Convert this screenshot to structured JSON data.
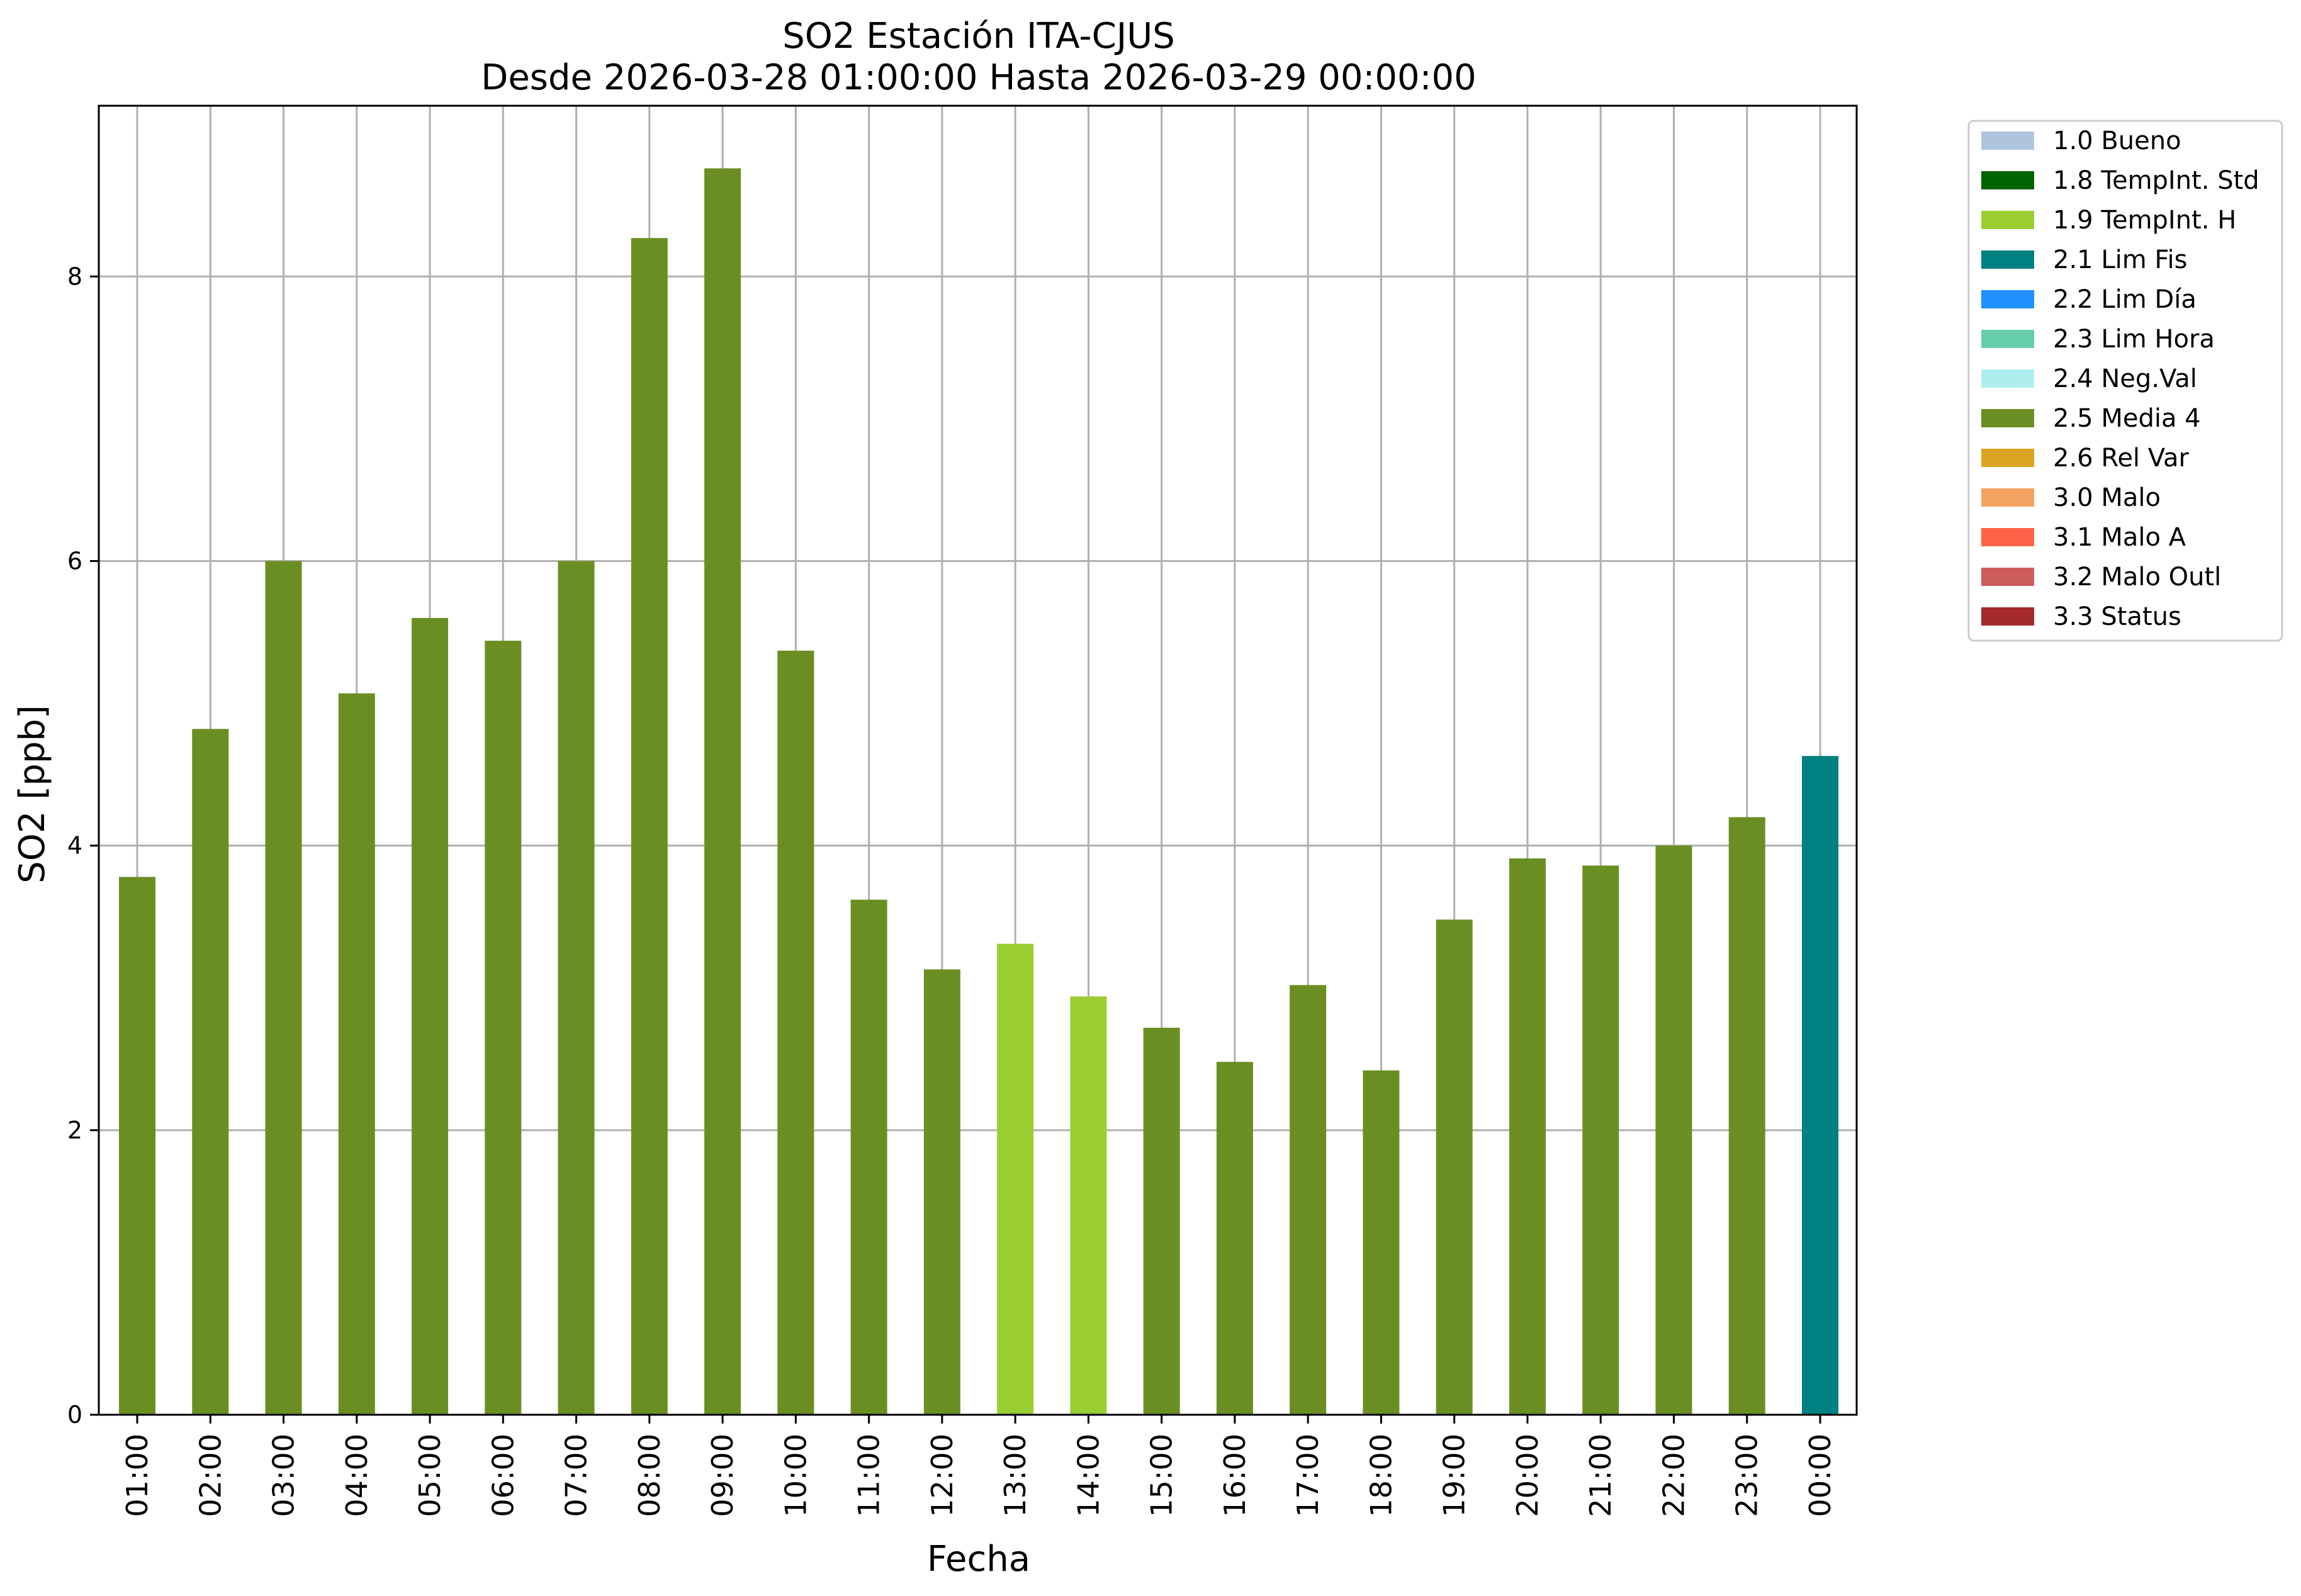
{
  "chart_data": {
    "type": "bar",
    "title": "SO2 Estación ITA-CJUS",
    "subtitle": "Desde 2026-03-28 01:00:00 Hasta 2026-03-29 00:00:00",
    "xlabel": "Fecha",
    "ylabel": "SO2 [ppb]",
    "ylim": [
      0,
      9.2
    ],
    "yticks": [
      0,
      2,
      4,
      6,
      8
    ],
    "grid": true,
    "legend_position": "outside-top-right",
    "categories": [
      "01:00",
      "02:00",
      "03:00",
      "04:00",
      "05:00",
      "06:00",
      "07:00",
      "08:00",
      "09:00",
      "10:00",
      "11:00",
      "12:00",
      "13:00",
      "14:00",
      "15:00",
      "16:00",
      "17:00",
      "18:00",
      "19:00",
      "20:00",
      "21:00",
      "22:00",
      "23:00",
      "00:00"
    ],
    "values": [
      3.78,
      4.82,
      6.0,
      5.07,
      5.6,
      5.44,
      6.0,
      8.27,
      8.76,
      5.37,
      3.62,
      3.13,
      3.31,
      2.94,
      2.72,
      2.48,
      3.02,
      2.42,
      3.48,
      3.91,
      3.86,
      4.0,
      4.2,
      4.63
    ],
    "flags": [
      "2.5 Media 4",
      "2.5 Media 4",
      "2.5 Media 4",
      "2.5 Media 4",
      "2.5 Media 4",
      "2.5 Media 4",
      "2.5 Media 4",
      "2.5 Media 4",
      "2.5 Media 4",
      "2.5 Media 4",
      "2.5 Media 4",
      "2.5 Media 4",
      "1.9 TempInt. H",
      "1.9 TempInt. H",
      "2.5 Media 4",
      "2.5 Media 4",
      "2.5 Media 4",
      "2.5 Media 4",
      "2.5 Media 4",
      "2.5 Media 4",
      "2.5 Media 4",
      "2.5 Media 4",
      "2.5 Media 4",
      "2.1 Lim Fis"
    ],
    "legend": [
      {
        "label": "1.0 Bueno",
        "color": "#b0c4de"
      },
      {
        "label": "1.8 TempInt. Std",
        "color": "#006400"
      },
      {
        "label": "1.9 TempInt. H",
        "color": "#9acd32"
      },
      {
        "label": "2.1 Lim Fis",
        "color": "#008080"
      },
      {
        "label": "2.2 Lim Día",
        "color": "#1e90ff"
      },
      {
        "label": "2.3 Lim Hora",
        "color": "#66cdaa"
      },
      {
        "label": "2.4 Neg.Val",
        "color": "#afeeee"
      },
      {
        "label": "2.5 Media 4",
        "color": "#6b8e23"
      },
      {
        "label": "2.6 Rel Var",
        "color": "#daa520"
      },
      {
        "label": "3.0 Malo",
        "color": "#f4a460"
      },
      {
        "label": "3.1 Malo A",
        "color": "#ff6347"
      },
      {
        "label": "3.2 Malo Outl",
        "color": "#cd5c5c"
      },
      {
        "label": "3.3 Status",
        "color": "#a52a2a"
      }
    ]
  }
}
